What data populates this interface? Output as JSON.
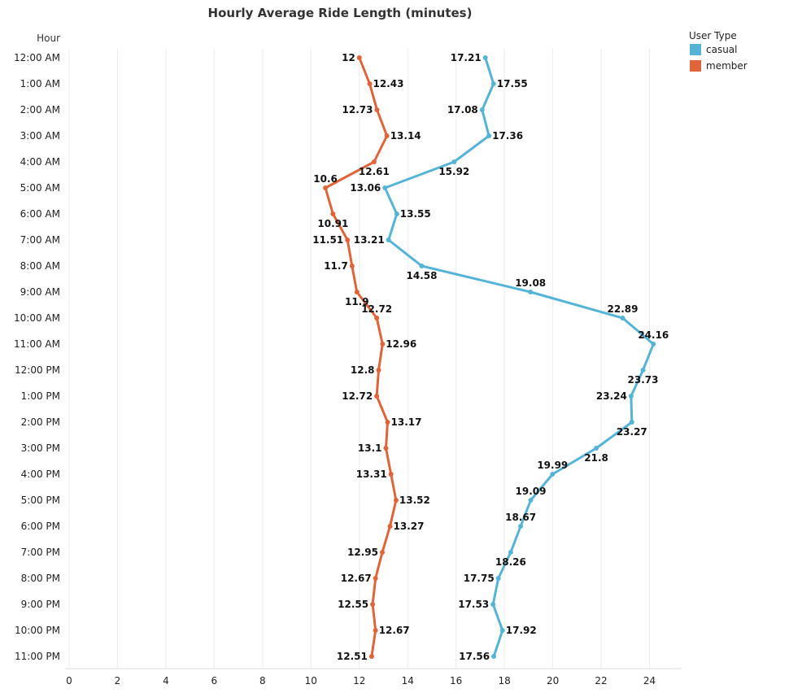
{
  "chart_data": {
    "type": "line",
    "orientation": "vertical-categories",
    "title": "Hourly Average Ride Length (minutes)",
    "ylabel": "Hour",
    "xlabel": "",
    "xlim": [
      0,
      25
    ],
    "x_ticks": [
      0,
      2,
      4,
      6,
      8,
      10,
      12,
      14,
      16,
      18,
      20,
      22,
      24
    ],
    "grid": true,
    "legend": {
      "title": "User Type",
      "placement": "top-right"
    },
    "categories": [
      "12:00 AM",
      "1:00 AM",
      "2:00 AM",
      "3:00 AM",
      "4:00 AM",
      "5:00 AM",
      "6:00 AM",
      "7:00 AM",
      "8:00 AM",
      "9:00 AM",
      "10:00 AM",
      "11:00 AM",
      "12:00 PM",
      "1:00 PM",
      "2:00 PM",
      "3:00 PM",
      "4:00 PM",
      "5:00 PM",
      "6:00 PM",
      "7:00 PM",
      "8:00 PM",
      "9:00 PM",
      "10:00 PM",
      "11:00 PM"
    ],
    "series": [
      {
        "name": "casual",
        "color": "#55b4d6",
        "values": [
          17.21,
          17.55,
          17.08,
          17.36,
          15.92,
          13.06,
          13.55,
          13.21,
          14.58,
          19.08,
          22.89,
          24.16,
          23.73,
          23.24,
          23.27,
          21.8,
          19.99,
          19.09,
          18.67,
          18.26,
          17.75,
          17.53,
          17.92,
          17.56
        ],
        "labels": [
          "17.21",
          "17.55",
          "17.08",
          "17.36",
          "15.92",
          "13.06",
          "13.55",
          "13.21",
          "14.58",
          "19.08",
          "22.89",
          "24.16",
          "23.73",
          "23.24",
          "23.27",
          "21.8",
          "19.99",
          "19.09",
          "18.67",
          "18.26",
          "17.75",
          "17.53",
          "17.92",
          "17.56"
        ],
        "label_positions": [
          "left",
          "right",
          "left",
          "right",
          "below",
          "left",
          "right",
          "left",
          "below",
          "above",
          "above",
          "above",
          "below",
          "left",
          "below",
          "below",
          "above",
          "above",
          "above",
          "below",
          "left",
          "left",
          "right",
          "left"
        ]
      },
      {
        "name": "member",
        "color": "#e0643a",
        "values": [
          12,
          12.43,
          12.73,
          13.14,
          12.61,
          10.6,
          10.91,
          11.51,
          11.7,
          11.9,
          12.72,
          12.96,
          12.8,
          12.72,
          13.17,
          13.1,
          13.31,
          13.52,
          13.27,
          12.95,
          12.67,
          12.55,
          12.67,
          12.51
        ],
        "labels": [
          "12",
          "12.43",
          "12.73",
          "13.14",
          "12.61",
          "10.6",
          "10.91",
          "11.51",
          "11.7",
          "11.9",
          "12.72",
          "12.96",
          "12.8",
          "12.72",
          "13.17",
          "13.1",
          "13.31",
          "13.52",
          "13.27",
          "12.95",
          "12.67",
          "12.55",
          "12.67",
          "12.51"
        ],
        "label_positions": [
          "left",
          "right",
          "left",
          "right",
          "below",
          "above",
          "below",
          "left",
          "left",
          "below",
          "above",
          "right",
          "left",
          "left",
          "right",
          "left",
          "left",
          "right",
          "right",
          "left",
          "left",
          "left",
          "right",
          "left"
        ]
      }
    ]
  }
}
